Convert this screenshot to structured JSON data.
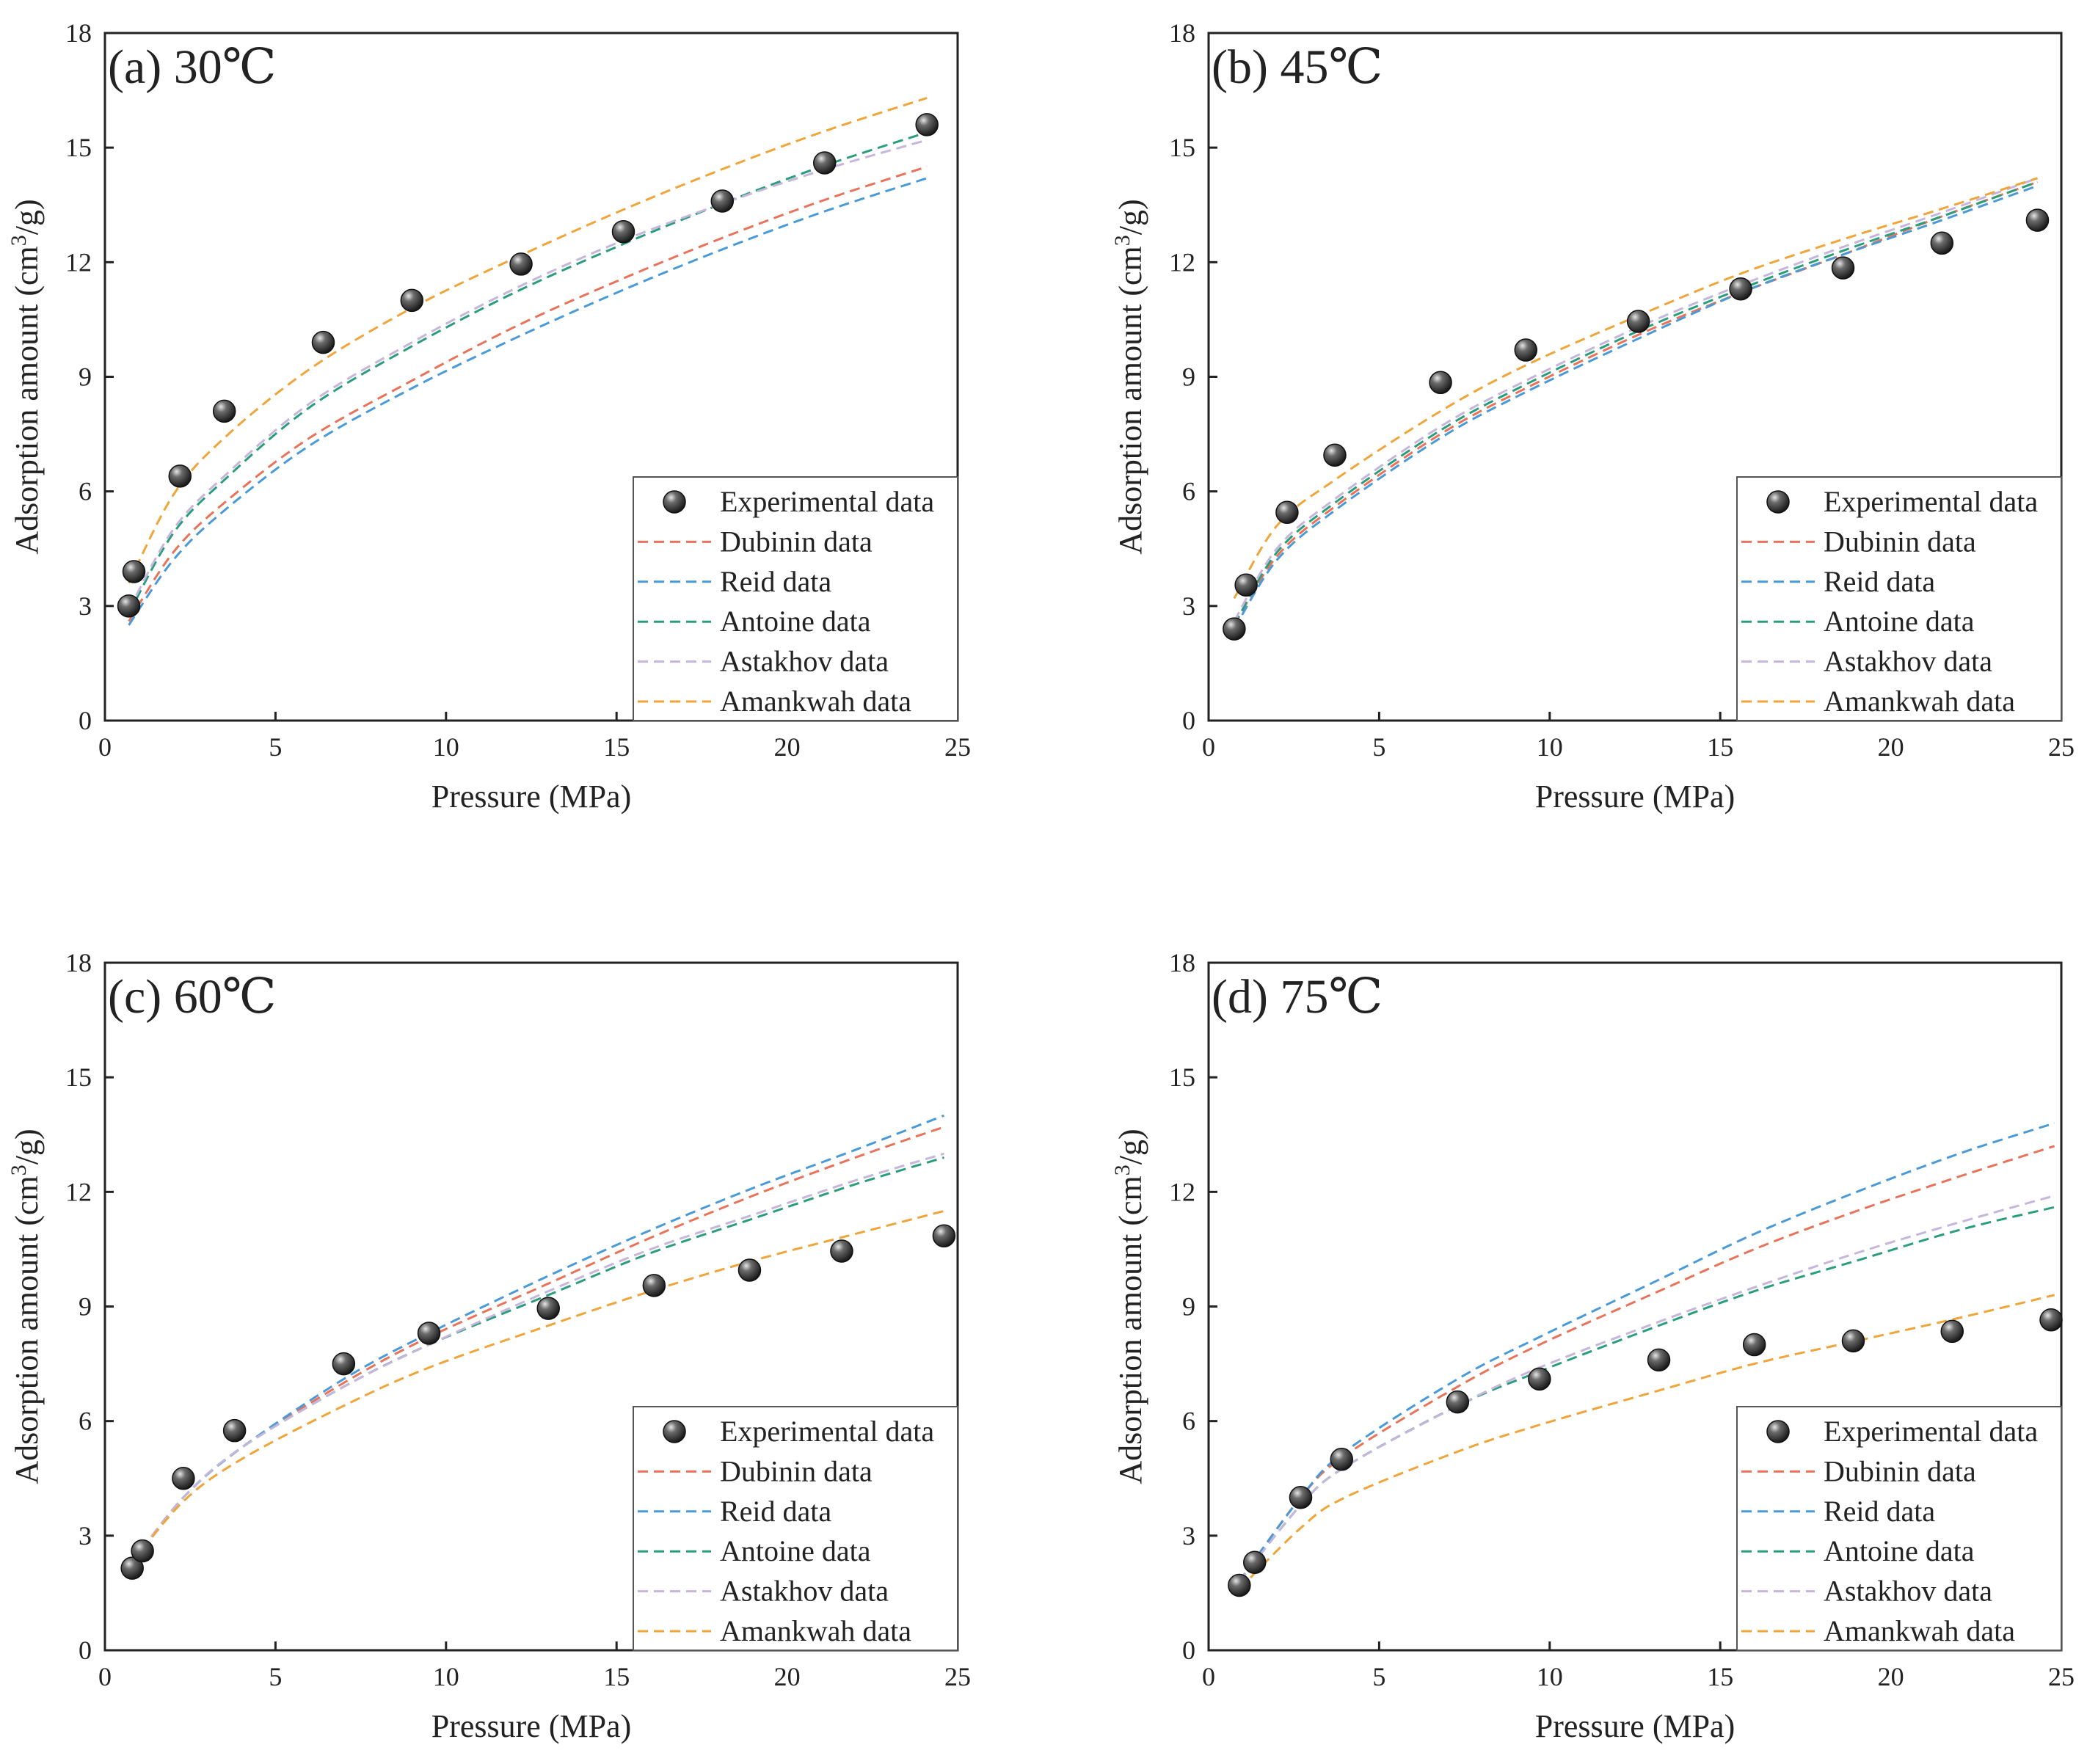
{
  "figure": {
    "xlabel": "Pressure (MPa)",
    "ylabel_main": "Adsorption amount (cm",
    "ylabel_sup": "3",
    "ylabel_end": "/g)"
  },
  "legend": [
    {
      "label": "Experimental data",
      "kind": "marker"
    },
    {
      "label": "Dubinin data",
      "kind": "line",
      "color": "#e8735a"
    },
    {
      "label": "Reid data",
      "kind": "line",
      "color": "#4a9ad8"
    },
    {
      "label": "Antoine data",
      "kind": "line",
      "color": "#2a9d7c"
    },
    {
      "label": "Astakhov data",
      "kind": "line",
      "color": "#c7b6dc"
    },
    {
      "label": "Amankwah data",
      "kind": "line",
      "color": "#f0a53a"
    }
  ],
  "chart_data": [
    {
      "type": "scatter+line",
      "title": "(a) 30℃",
      "xlabel": "Pressure (MPa)",
      "ylabel": "Adsorption amount (cm3/g)",
      "xlim": [
        0,
        25
      ],
      "ylim": [
        0,
        18
      ],
      "xticks": [
        0,
        5,
        10,
        15,
        20,
        25
      ],
      "yticks": [
        0,
        3,
        6,
        9,
        12,
        15,
        18
      ],
      "experimental": {
        "x": [
          0.7,
          0.85,
          2.2,
          3.5,
          6.4,
          9.0,
          12.2,
          15.2,
          18.1,
          21.1,
          24.1
        ],
        "y": [
          3.0,
          3.9,
          6.4,
          8.1,
          9.9,
          11.0,
          11.95,
          12.8,
          13.6,
          14.6,
          15.6
        ]
      },
      "series": [
        {
          "name": "Dubinin data",
          "color": "#e8735a",
          "x": [
            0.7,
            2,
            3.5,
            6,
            9,
            12,
            15,
            18,
            21,
            24.1
          ],
          "y": [
            2.6,
            4.4,
            5.7,
            7.4,
            8.9,
            10.3,
            11.5,
            12.6,
            13.6,
            14.5
          ]
        },
        {
          "name": "Reid data",
          "color": "#4a9ad8",
          "x": [
            0.7,
            2,
            3.5,
            6,
            9,
            12,
            15,
            18,
            21,
            24.1
          ],
          "y": [
            2.5,
            4.2,
            5.5,
            7.2,
            8.7,
            10.0,
            11.2,
            12.3,
            13.3,
            14.2
          ]
        },
        {
          "name": "Antoine data",
          "color": "#2a9d7c",
          "x": [
            0.7,
            2,
            3.5,
            6,
            9,
            12,
            15,
            18,
            21,
            24.1
          ],
          "y": [
            2.8,
            4.9,
            6.3,
            8.2,
            9.8,
            11.2,
            12.4,
            13.5,
            14.5,
            15.4
          ]
        },
        {
          "name": "Astakhov data",
          "color": "#c7b6dc",
          "x": [
            0.7,
            2,
            3.5,
            6,
            9,
            12,
            15,
            18,
            21,
            24.1
          ],
          "y": [
            2.9,
            5.0,
            6.4,
            8.3,
            9.9,
            11.3,
            12.5,
            13.5,
            14.4,
            15.2
          ]
        },
        {
          "name": "Amankwah data",
          "color": "#f0a53a",
          "x": [
            0.7,
            2,
            3.5,
            6,
            9,
            12,
            15,
            18,
            21,
            24.1
          ],
          "y": [
            3.6,
            5.9,
            7.4,
            9.2,
            10.8,
            12.1,
            13.3,
            14.4,
            15.4,
            16.3
          ]
        }
      ]
    },
    {
      "type": "scatter+line",
      "title": "(b) 45℃",
      "xlabel": "Pressure (MPa)",
      "ylabel": "Adsorption amount (cm3/g)",
      "xlim": [
        0,
        25
      ],
      "ylim": [
        0,
        18
      ],
      "xticks": [
        0,
        5,
        10,
        15,
        20,
        25
      ],
      "yticks": [
        0,
        3,
        6,
        9,
        12,
        15,
        18
      ],
      "experimental": {
        "x": [
          0.75,
          1.1,
          2.3,
          3.7,
          6.8,
          9.3,
          12.6,
          15.6,
          18.6,
          21.5,
          24.3
        ],
        "y": [
          2.4,
          3.55,
          5.45,
          6.95,
          8.85,
          9.7,
          10.45,
          11.3,
          11.85,
          12.5,
          13.1
        ]
      },
      "series": [
        {
          "name": "Dubinin data",
          "color": "#e8735a",
          "x": [
            0.75,
            2,
            3.7,
            6.8,
            9.3,
            12.6,
            15.6,
            18.6,
            21.5,
            24.3
          ],
          "y": [
            2.5,
            4.3,
            5.6,
            7.5,
            8.7,
            10.1,
            11.2,
            12.2,
            13.2,
            14.1
          ]
        },
        {
          "name": "Reid data",
          "color": "#4a9ad8",
          "x": [
            0.75,
            2,
            3.7,
            6.8,
            9.3,
            12.6,
            15.6,
            18.6,
            21.5,
            24.3
          ],
          "y": [
            2.4,
            4.2,
            5.5,
            7.4,
            8.6,
            10.0,
            11.2,
            12.2,
            13.1,
            14.0
          ]
        },
        {
          "name": "Antoine data",
          "color": "#2a9d7c",
          "x": [
            0.75,
            2,
            3.7,
            6.8,
            9.3,
            12.6,
            15.6,
            18.6,
            21.5,
            24.3
          ],
          "y": [
            2.5,
            4.4,
            5.7,
            7.6,
            8.8,
            10.2,
            11.3,
            12.3,
            13.2,
            14.1
          ]
        },
        {
          "name": "Astakhov data",
          "color": "#c7b6dc",
          "x": [
            0.75,
            2,
            3.7,
            6.8,
            9.3,
            12.6,
            15.6,
            18.6,
            21.5,
            24.3
          ],
          "y": [
            2.6,
            4.5,
            5.8,
            7.7,
            8.9,
            10.3,
            11.4,
            12.4,
            13.3,
            14.2
          ]
        },
        {
          "name": "Amankwah data",
          "color": "#f0a53a",
          "x": [
            0.75,
            2,
            3.7,
            6.8,
            9.3,
            12.6,
            15.6,
            18.6,
            21.5,
            24.3
          ],
          "y": [
            3.2,
            5.1,
            6.3,
            8.1,
            9.3,
            10.6,
            11.7,
            12.6,
            13.4,
            14.2
          ]
        }
      ]
    },
    {
      "type": "scatter+line",
      "title": "(c) 60℃",
      "xlabel": "Pressure (MPa)",
      "ylabel": "Adsorption amount (cm3/g)",
      "xlim": [
        0,
        25
      ],
      "ylim": [
        0,
        18
      ],
      "xticks": [
        0,
        5,
        10,
        15,
        20,
        25
      ],
      "yticks": [
        0,
        3,
        6,
        9,
        12,
        15,
        18
      ],
      "experimental": {
        "x": [
          0.8,
          1.1,
          2.3,
          3.8,
          7.0,
          9.5,
          13.0,
          16.1,
          18.9,
          21.6,
          24.6
        ],
        "y": [
          2.15,
          2.6,
          4.5,
          5.75,
          7.5,
          8.3,
          8.95,
          9.55,
          9.95,
          10.45,
          10.85
        ]
      },
      "series": [
        {
          "name": "Dubinin data",
          "color": "#e8735a",
          "x": [
            0.8,
            2.3,
            4,
            7,
            9.5,
            13,
            16,
            19,
            22,
            24.6
          ],
          "y": [
            2.3,
            4.0,
            5.3,
            7.0,
            8.2,
            9.6,
            10.8,
            11.9,
            12.9,
            13.7
          ]
        },
        {
          "name": "Reid data",
          "color": "#4a9ad8",
          "x": [
            0.8,
            2.3,
            4,
            7,
            9.5,
            13,
            16,
            19,
            22,
            24.6
          ],
          "y": [
            2.3,
            4.0,
            5.3,
            7.1,
            8.3,
            9.8,
            11.0,
            12.1,
            13.1,
            14.0
          ]
        },
        {
          "name": "Antoine data",
          "color": "#2a9d7c",
          "x": [
            0.8,
            2.3,
            4,
            7,
            9.5,
            13,
            16,
            19,
            22,
            24.6
          ],
          "y": [
            2.3,
            4.0,
            5.3,
            6.9,
            8.0,
            9.3,
            10.4,
            11.3,
            12.2,
            12.9
          ]
        },
        {
          "name": "Astakhov data",
          "color": "#c7b6dc",
          "x": [
            0.8,
            2.3,
            4,
            7,
            9.5,
            13,
            16,
            19,
            22,
            24.6
          ],
          "y": [
            2.3,
            4.0,
            5.3,
            6.9,
            8.0,
            9.4,
            10.5,
            11.4,
            12.3,
            13.0
          ]
        },
        {
          "name": "Amankwah data",
          "color": "#f0a53a",
          "x": [
            0.8,
            2.3,
            4,
            7,
            9.5,
            13,
            16,
            19,
            22,
            24.6
          ],
          "y": [
            2.3,
            3.9,
            5.0,
            6.4,
            7.4,
            8.5,
            9.4,
            10.2,
            10.9,
            11.5
          ]
        }
      ]
    },
    {
      "type": "scatter+line",
      "title": "(d) 75℃",
      "xlabel": "Pressure (MPa)",
      "ylabel": "Adsorption amount (cm3/g)",
      "xlim": [
        0,
        25
      ],
      "ylim": [
        0,
        18
      ],
      "xticks": [
        0,
        5,
        10,
        15,
        20,
        25
      ],
      "yticks": [
        0,
        3,
        6,
        9,
        12,
        15,
        18
      ],
      "experimental": {
        "x": [
          0.9,
          1.35,
          2.7,
          3.9,
          7.3,
          9.7,
          13.2,
          16.0,
          18.9,
          21.8,
          24.7
        ],
        "y": [
          1.7,
          2.3,
          4.0,
          5.0,
          6.5,
          7.1,
          7.6,
          8.0,
          8.1,
          8.35,
          8.65
        ]
      },
      "series": [
        {
          "name": "Dubinin data",
          "color": "#e8735a",
          "x": [
            0.9,
            2.7,
            4,
            7.3,
            9.7,
            13.2,
            16,
            19,
            22,
            24.8
          ],
          "y": [
            1.8,
            4.0,
            5.1,
            6.9,
            8.0,
            9.4,
            10.5,
            11.5,
            12.4,
            13.2
          ]
        },
        {
          "name": "Reid data",
          "color": "#4a9ad8",
          "x": [
            0.9,
            2.7,
            4,
            7.3,
            9.7,
            13.2,
            16,
            19,
            22,
            24.8
          ],
          "y": [
            1.8,
            4.0,
            5.2,
            7.1,
            8.2,
            9.7,
            10.9,
            12.0,
            13.0,
            13.8
          ]
        },
        {
          "name": "Antoine data",
          "color": "#2a9d7c",
          "x": [
            0.9,
            2.7,
            4,
            7.3,
            9.7,
            13.2,
            16,
            19,
            22,
            24.8
          ],
          "y": [
            1.8,
            3.8,
            4.8,
            6.4,
            7.3,
            8.5,
            9.4,
            10.2,
            11.0,
            11.6
          ]
        },
        {
          "name": "Astakhov data",
          "color": "#c7b6dc",
          "x": [
            0.9,
            2.7,
            4,
            7.3,
            9.7,
            13.2,
            16,
            19,
            22,
            24.8
          ],
          "y": [
            1.8,
            3.8,
            4.8,
            6.4,
            7.4,
            8.6,
            9.5,
            10.4,
            11.2,
            11.9
          ]
        },
        {
          "name": "Amankwah data",
          "color": "#f0a53a",
          "x": [
            0.9,
            2.7,
            4,
            7.3,
            9.7,
            13.2,
            16,
            19,
            22,
            24.8
          ],
          "y": [
            1.6,
            3.2,
            4.0,
            5.2,
            5.9,
            6.8,
            7.5,
            8.1,
            8.7,
            9.3
          ]
        }
      ]
    }
  ]
}
